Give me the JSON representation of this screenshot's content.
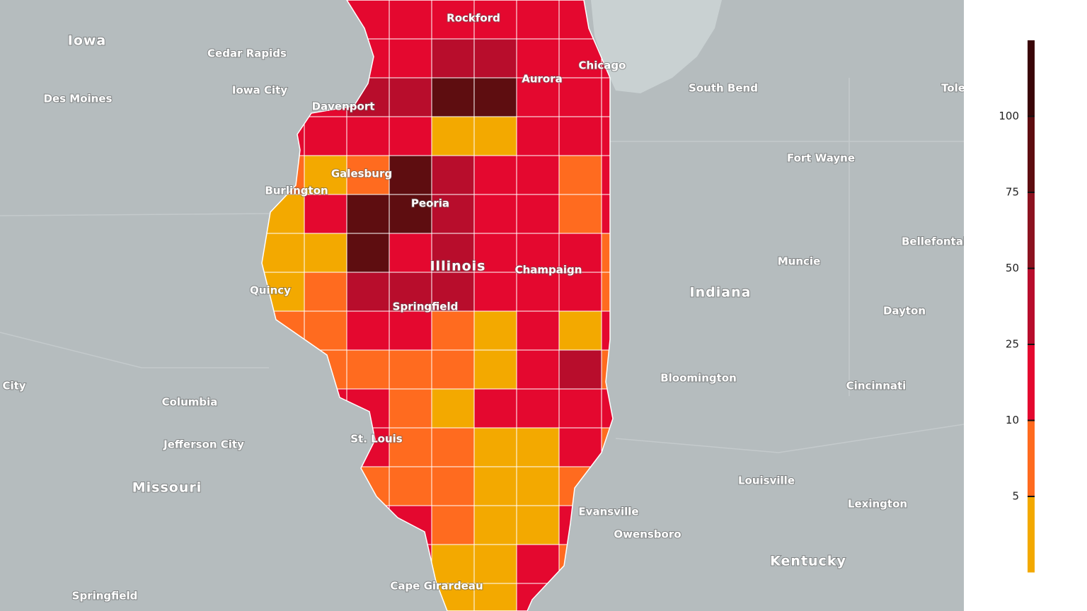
{
  "map": {
    "places": [
      "Iowa",
      "Cedar Rapids",
      "Iowa City",
      "Des Moines",
      "Davenport",
      "Rockford",
      "Chicago",
      "Aurora",
      "South Bend",
      "Tole",
      "Fort Wayne",
      "Galesburg",
      "Burlington",
      "Peoria",
      "Bellefontai",
      "Illinois",
      "Champaign",
      "Muncie",
      "Quincy",
      "Indiana",
      "Springfield",
      "Dayton",
      "Bloomington",
      "City",
      "Cincinnati",
      "Columbia",
      "St. Louis",
      "Jefferson City",
      "Louisville",
      "Missouri",
      "Lexington",
      "Evansville",
      "Owensboro",
      "Kentucky",
      "Cape Girardeau",
      "Springfield"
    ],
    "legend": {
      "colors": [
        "#3a0608",
        "#5e0d10",
        "#8c1220",
        "#b80d2c",
        "#e4082f",
        "#ff6b1f",
        "#f3a900"
      ],
      "ticks": [
        100,
        75,
        50,
        25,
        10,
        5
      ]
    }
  }
}
